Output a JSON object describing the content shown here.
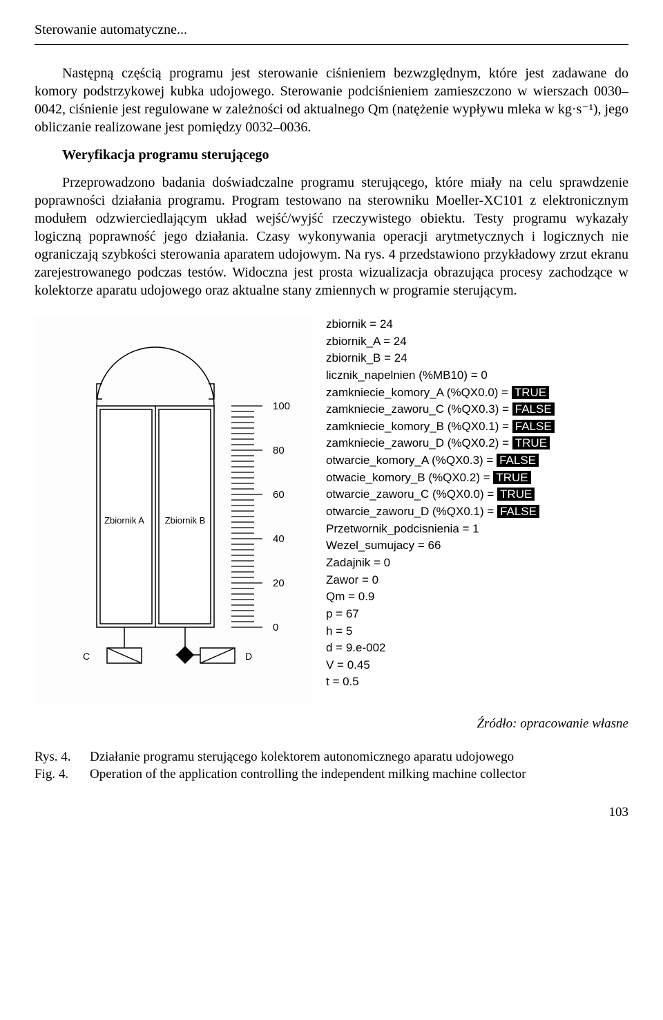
{
  "header": {
    "title": "Sterowanie automatyczne..."
  },
  "para1": "Następną częścią programu jest sterowanie ciśnieniem bezwzględnym, które jest zadawane do komory podstrzykowej kubka udojowego. Sterowanie podciśnieniem zamieszczono w wierszach 0030–0042, ciśnienie jest regulowane w zależności od aktualnego Qm (natężenie wypływu mleka w kg·s⁻¹), jego obliczanie realizowane jest pomiędzy 0032–0036.",
  "section_heading": "Weryfikacja programu sterującego",
  "para2": "Przeprowadzono badania doświadczalne programu sterującego, które miały na celu sprawdzenie poprawności działania programu. Program testowano na sterowniku Moeller-XC101 z elektronicznym modułem odzwierciedlającym układ wejść/wyjść rzeczywistego obiektu. Testy programu wykazały logiczną poprawność jego działania. Czasy wykonywania operacji arytmetycznych i logicznych nie ograniczają szybkości sterowania aparatem udojowym. Na rys. 4 przedstawiono przykładowy zrzut ekranu zarejestrowanego podczas testów. Widoczna jest prosta wizualizacja obrazująca procesy zachodzące w kolektorze aparatu udojowego oraz aktualne stany zmiennych w programie sterującym.",
  "figure": {
    "vessel": {
      "tank_a_label": "Zbiornik A",
      "tank_b_label": "Zbiornik B",
      "valve_c_label": "C",
      "valve_d_label": "D",
      "scale_ticks": [
        "100",
        "80",
        "60",
        "40",
        "20",
        "0"
      ],
      "stroke": "#000000",
      "fill_bg": "#ffffff",
      "font_family": "Arial"
    },
    "vars": [
      {
        "text": "zbiornik = 24"
      },
      {
        "text": "zbiornik_A = 24"
      },
      {
        "text": "zbiornik_B = 24"
      },
      {
        "text": "licznik_napelnien (%MB10) = 0"
      },
      {
        "label": "zamkniecie_komory_A (%QX0.0) = ",
        "value": "TRUE"
      },
      {
        "label": "zamkniecie_zaworu_C (%QX0.3) = ",
        "value": "FALSE"
      },
      {
        "label": "zamkniecie_komory_B (%QX0.1) = ",
        "value": "FALSE"
      },
      {
        "label": "zamkniecie_zaworu_D (%QX0.2) = ",
        "value": "TRUE"
      },
      {
        "label": "otwarcie_komory_A (%QX0.3) = ",
        "value": "FALSE"
      },
      {
        "label": "otwacie_komory_B (%QX0.2) = ",
        "value": "TRUE"
      },
      {
        "label": "otwarcie_zaworu_C (%QX0.0) = ",
        "value": "TRUE"
      },
      {
        "label": "otwarcie_zaworu_D (%QX0.1) = ",
        "value": "FALSE"
      },
      {
        "text": "Przetwornik_podcisnienia = 1"
      },
      {
        "text": "Wezel_sumujacy = 66"
      },
      {
        "text": "Zadajnik = 0"
      },
      {
        "text": "Zawor = 0"
      },
      {
        "text": "Qm = 0.9"
      },
      {
        "text": "p = 67"
      },
      {
        "text": "h = 5"
      },
      {
        "text": "d = 9.e-002"
      },
      {
        "text": "V = 0.45"
      },
      {
        "text": "t = 0.5"
      }
    ]
  },
  "source": "Źródło: opracowanie własne",
  "captions": {
    "pl_key": "Rys. 4.",
    "pl_text": "Działanie programu sterującego kolektorem autonomicznego aparatu udojowego",
    "en_key": "Fig. 4.",
    "en_text": "Operation of the application controlling the independent milking machine collector"
  },
  "page_number": "103"
}
